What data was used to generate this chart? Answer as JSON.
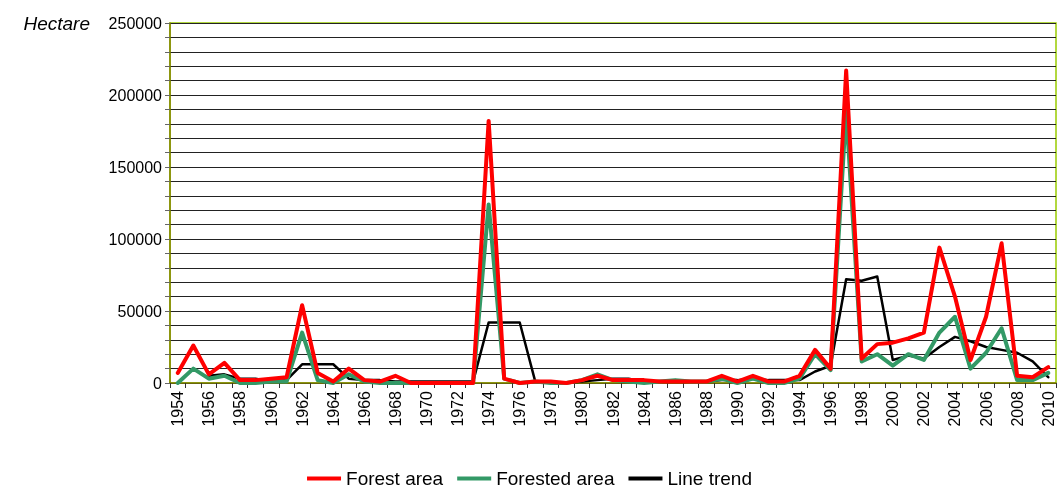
{
  "chart_data": {
    "type": "line",
    "ylabel": "Hectare",
    "categories": [
      "1954",
      null,
      "1956",
      null,
      "1958",
      null,
      "1960",
      null,
      "1962",
      null,
      "1964",
      null,
      "1966",
      null,
      "1968",
      null,
      "1970",
      null,
      "1972",
      null,
      "1974",
      null,
      "1976",
      null,
      "1978",
      null,
      "1980",
      null,
      "1982",
      null,
      "1984",
      null,
      "1986",
      null,
      "1988",
      null,
      "1990",
      null,
      "1992",
      null,
      "1994",
      null,
      "1996",
      null,
      "1998",
      null,
      "2000",
      null,
      "2002",
      null,
      "2004",
      null,
      "2006",
      null,
      "2008",
      null,
      "2010"
    ],
    "series": [
      {
        "name": "Forest area",
        "color": "#ff0000",
        "values": [
          7000,
          26000,
          6000,
          14000,
          2000,
          2000,
          3000,
          4000,
          54000,
          7000,
          1000,
          10000,
          2000,
          1000,
          5000,
          0,
          0,
          0,
          0,
          0,
          182000,
          3000,
          0,
          1000,
          1000,
          0,
          2000,
          5000,
          2000,
          2000,
          2000,
          1000,
          1000,
          1000,
          1000,
          5000,
          1000,
          5000,
          1000,
          1000,
          5000,
          23000,
          10000,
          217000,
          17000,
          27000,
          28000,
          31000,
          35000,
          94000,
          60000,
          16000,
          46000,
          97000,
          5000,
          4000,
          11000
        ]
      },
      {
        "name": "Forested area",
        "color": "#339966",
        "values": [
          0,
          10000,
          3000,
          5000,
          0,
          0,
          1000,
          1000,
          35000,
          2000,
          0,
          6000,
          1000,
          0,
          0,
          0,
          0,
          0,
          0,
          0,
          124000,
          3000,
          0,
          1000,
          0,
          0,
          2000,
          6000,
          2000,
          1000,
          0,
          1000,
          2000,
          1000,
          1000,
          3000,
          0,
          3000,
          0,
          0,
          3000,
          20000,
          9000,
          189000,
          15000,
          20000,
          12000,
          20000,
          16000,
          35000,
          46000,
          10000,
          21000,
          38000,
          2000,
          2000,
          7000
        ]
      },
      {
        "name": "Line trend",
        "color": "#000000",
        "values": [
          null,
          null,
          5000,
          6000,
          3000,
          3000,
          1000,
          2000,
          13000,
          13000,
          13000,
          3000,
          2000,
          2000,
          1000,
          1000,
          1000,
          1000,
          1000,
          1000,
          42000,
          42000,
          42000,
          1000,
          1000,
          0,
          1000,
          2000,
          3000,
          3000,
          1000,
          1000,
          1000,
          1000,
          1000,
          2000,
          2000,
          3000,
          2000,
          2000,
          2000,
          8000,
          12000,
          72000,
          71000,
          74000,
          16000,
          19000,
          17000,
          25000,
          32000,
          29000,
          25000,
          23000,
          21000,
          15000,
          4000
        ]
      }
    ],
    "ylim": [
      0,
      250000
    ],
    "yticks": [
      0,
      {
        "value": 10000,
        "label": null
      },
      {
        "value": 20000,
        "label": null
      },
      {
        "value": 30000,
        "label": null
      },
      {
        "value": 40000,
        "label": null
      },
      50000,
      {
        "value": 60000,
        "label": null
      },
      {
        "value": 70000,
        "label": null
      },
      {
        "value": 80000,
        "label": null
      },
      {
        "value": 90000,
        "label": null
      },
      100000,
      {
        "value": 110000,
        "label": null
      },
      {
        "value": 120000,
        "label": null
      },
      {
        "value": 130000,
        "label": null
      },
      {
        "value": 140000,
        "label": null
      },
      150000,
      {
        "value": 160000,
        "label": null
      },
      {
        "value": 170000,
        "label": null
      },
      {
        "value": 180000,
        "label": null
      },
      {
        "value": 190000,
        "label": null
      },
      200000,
      {
        "value": 210000,
        "label": null
      },
      {
        "value": 220000,
        "label": null
      },
      {
        "value": 230000,
        "label": null
      },
      {
        "value": 240000,
        "label": null
      },
      250000
    ],
    "grid": "y",
    "legend": "bottom",
    "marker": "none",
    "line_style": "solid"
  }
}
